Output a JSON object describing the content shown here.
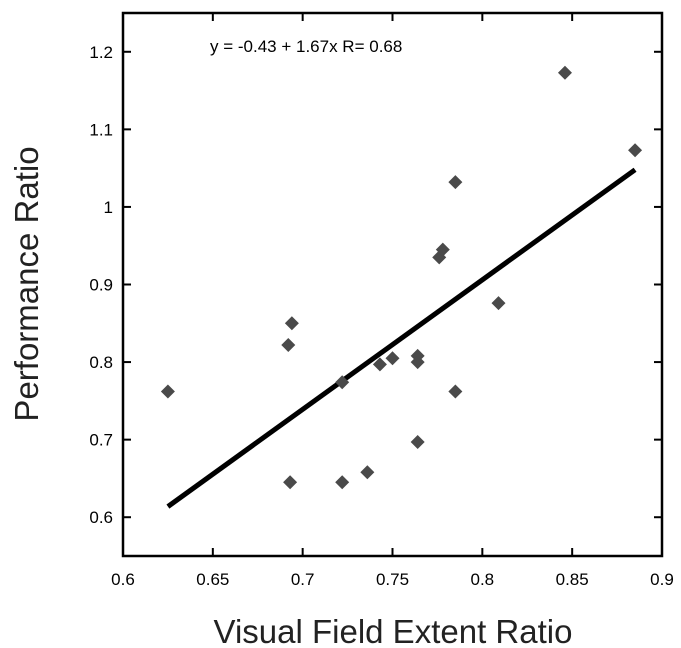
{
  "chart_data": {
    "type": "scatter",
    "title": "",
    "xlabel": "Visual Field Extent Ratio",
    "ylabel": "Performance Ratio",
    "annotation": "y = -0.43 + 1.67x   R= 0.68",
    "xlim": [
      0.6,
      0.9
    ],
    "ylim": [
      0.55,
      1.25
    ],
    "x_ticks": [
      0.6,
      0.65,
      0.7,
      0.75,
      0.8,
      0.85,
      0.9
    ],
    "x_tick_labels": [
      "0.6",
      "0.65",
      "0.7",
      "0.75",
      "0.8",
      "0.85",
      "0.9"
    ],
    "y_ticks": [
      0.6,
      0.7,
      0.8,
      0.9,
      1.0,
      1.1,
      1.2
    ],
    "y_tick_labels": [
      "0.6",
      "0.7",
      "0.8",
      "0.9",
      "1",
      "1.1",
      "1.2"
    ],
    "grid": false,
    "legend": "none",
    "marker": "diamond",
    "marker_color": "#4a4a4a",
    "line_color": "#000000",
    "points": [
      {
        "x": 0.625,
        "y": 0.762
      },
      {
        "x": 0.692,
        "y": 0.822
      },
      {
        "x": 0.694,
        "y": 0.85
      },
      {
        "x": 0.693,
        "y": 0.645
      },
      {
        "x": 0.722,
        "y": 0.774
      },
      {
        "x": 0.722,
        "y": 0.645
      },
      {
        "x": 0.736,
        "y": 0.658
      },
      {
        "x": 0.743,
        "y": 0.797
      },
      {
        "x": 0.75,
        "y": 0.805
      },
      {
        "x": 0.764,
        "y": 0.808
      },
      {
        "x": 0.764,
        "y": 0.8
      },
      {
        "x": 0.764,
        "y": 0.697
      },
      {
        "x": 0.776,
        "y": 0.935
      },
      {
        "x": 0.778,
        "y": 0.945
      },
      {
        "x": 0.785,
        "y": 1.032
      },
      {
        "x": 0.785,
        "y": 0.762
      },
      {
        "x": 0.809,
        "y": 0.876
      },
      {
        "x": 0.846,
        "y": 1.173
      },
      {
        "x": 0.885,
        "y": 1.073
      }
    ],
    "fit_line": {
      "intercept": -0.43,
      "slope": 1.67,
      "x_start": 0.625,
      "x_end": 0.885
    }
  }
}
